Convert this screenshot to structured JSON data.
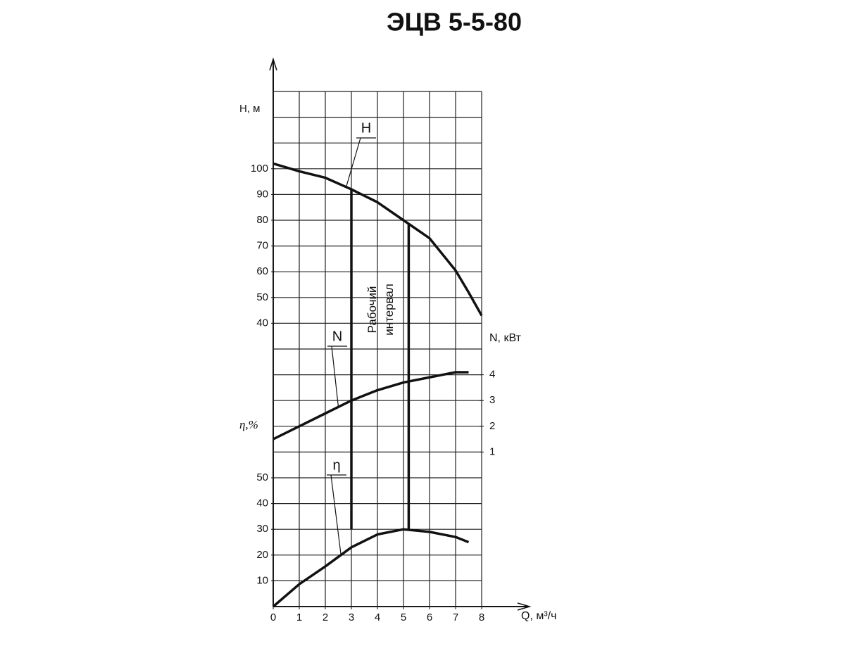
{
  "chart_data": {
    "type": "line",
    "title": "ЭЦВ 5-5-80",
    "x_label": "Q, м³/ч",
    "y_label": "H, м",
    "y2_label": "N, кВт",
    "y3_label": "η,%",
    "x": [
      0,
      1,
      2,
      3,
      4,
      5,
      6,
      7,
      7.5,
      8
    ],
    "xlim": [
      0,
      8
    ],
    "xticks": [
      0,
      1,
      2,
      3,
      4,
      5,
      6,
      7,
      8
    ],
    "ylim": [
      -70,
      130
    ],
    "yticks": [
      40,
      50,
      60,
      70,
      80,
      90,
      100
    ],
    "y2lim": [
      -5,
      15
    ],
    "y2ticks": [
      1,
      2,
      3,
      4
    ],
    "y3lim": [
      0,
      200
    ],
    "y3ticks": [
      10,
      20,
      30,
      40,
      50
    ],
    "grid": true,
    "series": [
      {
        "name": "H",
        "color": "#111111",
        "axis": "y",
        "values": [
          102,
          99,
          96.5,
          92,
          87,
          80,
          73,
          60.5,
          52,
          43
        ]
      },
      {
        "name": "N",
        "color": "#111111",
        "axis": "y2",
        "values": [
          1.5,
          2.0,
          2.5,
          3.0,
          3.4,
          3.7,
          3.9,
          4.1,
          4.1,
          null
        ]
      },
      {
        "name": "η",
        "color": "#111111",
        "axis": "y3",
        "values": [
          0,
          8.7,
          15.6,
          23,
          28,
          30,
          29,
          27,
          25,
          null
        ]
      }
    ],
    "annotation": {
      "lines": [
        "Рабочий",
        "интервал"
      ],
      "x": [
        3,
        5.2
      ]
    }
  }
}
